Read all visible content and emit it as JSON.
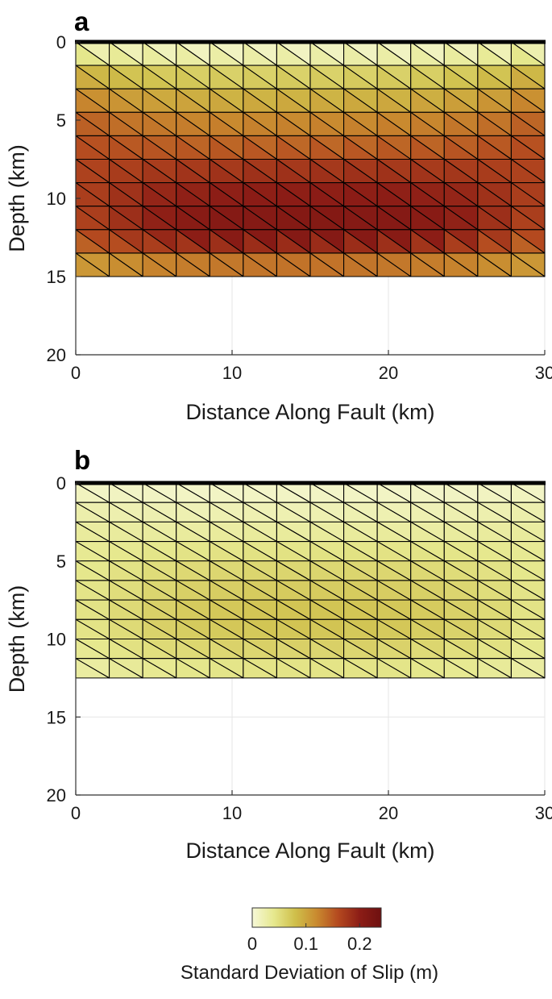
{
  "chart_data": [
    {
      "type": "heatmap",
      "panel_label": "a",
      "xlabel": "Distance Along Fault (km)",
      "ylabel": "Depth (km)",
      "xlim": [
        0,
        30
      ],
      "ylim": [
        20,
        0
      ],
      "xticks": [
        "0",
        "10",
        "20",
        "30"
      ],
      "yticks": [
        "0",
        "5",
        "10",
        "15",
        "20"
      ],
      "grid": true,
      "mesh": "triangulated fault patches, 14 along strike x 10 down dip (~2.14 km x 1.5 km), each split along one diagonal",
      "fault_bottom_depth": 15,
      "depth_bands": [
        0,
        1.5,
        3,
        4.5,
        6,
        7.5,
        9,
        10.5,
        12,
        13.5,
        15
      ],
      "values": [
        [
          0.022,
          0.018,
          0.015,
          0.013,
          0.012,
          0.012,
          0.012,
          0.012,
          0.012,
          0.012,
          0.013,
          0.015,
          0.018,
          0.022
        ],
        [
          0.085,
          0.075,
          0.068,
          0.064,
          0.062,
          0.061,
          0.061,
          0.061,
          0.061,
          0.062,
          0.064,
          0.068,
          0.075,
          0.085
        ],
        [
          0.115,
          0.104,
          0.096,
          0.092,
          0.089,
          0.088,
          0.088,
          0.088,
          0.088,
          0.089,
          0.092,
          0.096,
          0.104,
          0.115
        ],
        [
          0.142,
          0.132,
          0.126,
          0.122,
          0.12,
          0.119,
          0.119,
          0.119,
          0.119,
          0.12,
          0.122,
          0.126,
          0.132,
          0.142
        ],
        [
          0.155,
          0.15,
          0.146,
          0.143,
          0.142,
          0.141,
          0.141,
          0.141,
          0.141,
          0.142,
          0.143,
          0.146,
          0.15,
          0.155
        ],
        [
          0.165,
          0.168,
          0.171,
          0.173,
          0.174,
          0.175,
          0.175,
          0.175,
          0.175,
          0.174,
          0.173,
          0.171,
          0.168,
          0.165
        ],
        [
          0.17,
          0.18,
          0.19,
          0.194,
          0.197,
          0.198,
          0.198,
          0.198,
          0.198,
          0.197,
          0.194,
          0.19,
          0.18,
          0.17
        ],
        [
          0.17,
          0.184,
          0.198,
          0.205,
          0.209,
          0.21,
          0.211,
          0.211,
          0.21,
          0.209,
          0.205,
          0.198,
          0.184,
          0.17
        ],
        [
          0.16,
          0.175,
          0.19,
          0.2,
          0.205,
          0.208,
          0.209,
          0.209,
          0.208,
          0.205,
          0.2,
          0.19,
          0.175,
          0.16
        ],
        [
          0.11,
          0.117,
          0.124,
          0.128,
          0.131,
          0.133,
          0.134,
          0.134,
          0.133,
          0.131,
          0.128,
          0.124,
          0.117,
          0.11
        ]
      ]
    },
    {
      "type": "heatmap",
      "panel_label": "b",
      "xlabel": "Distance Along Fault (km)",
      "ylabel": "Depth (km)",
      "xlim": [
        0,
        30
      ],
      "ylim": [
        20,
        0
      ],
      "xticks": [
        "0",
        "10",
        "20",
        "30"
      ],
      "yticks": [
        "0",
        "5",
        "10",
        "15",
        "20"
      ],
      "grid": true,
      "mesh": "triangulated fault patches, 14 along strike x 10 down dip (~2.14 km x 1.25 km), each split along one diagonal",
      "fault_bottom_depth": 12.5,
      "depth_bands": [
        0,
        1.25,
        2.5,
        3.75,
        5,
        6.25,
        7.5,
        8.75,
        10,
        11.25,
        12.5
      ],
      "values": [
        [
          0.01,
          0.009,
          0.008,
          0.008,
          0.008,
          0.008,
          0.008,
          0.008,
          0.008,
          0.008,
          0.008,
          0.008,
          0.009,
          0.01
        ],
        [
          0.022,
          0.02,
          0.019,
          0.018,
          0.018,
          0.018,
          0.018,
          0.018,
          0.018,
          0.018,
          0.018,
          0.019,
          0.02,
          0.022
        ],
        [
          0.03,
          0.029,
          0.028,
          0.028,
          0.028,
          0.028,
          0.028,
          0.028,
          0.028,
          0.028,
          0.028,
          0.028,
          0.029,
          0.03
        ],
        [
          0.036,
          0.038,
          0.04,
          0.041,
          0.042,
          0.042,
          0.042,
          0.042,
          0.042,
          0.042,
          0.041,
          0.04,
          0.038,
          0.036
        ],
        [
          0.04,
          0.045,
          0.05,
          0.053,
          0.055,
          0.056,
          0.056,
          0.056,
          0.056,
          0.055,
          0.053,
          0.05,
          0.045,
          0.04
        ],
        [
          0.043,
          0.05,
          0.057,
          0.062,
          0.064,
          0.066,
          0.066,
          0.066,
          0.066,
          0.064,
          0.062,
          0.057,
          0.05,
          0.043
        ],
        [
          0.045,
          0.054,
          0.062,
          0.068,
          0.071,
          0.073,
          0.074,
          0.074,
          0.073,
          0.071,
          0.068,
          0.062,
          0.054,
          0.045
        ],
        [
          0.045,
          0.054,
          0.063,
          0.069,
          0.072,
          0.074,
          0.075,
          0.075,
          0.074,
          0.072,
          0.069,
          0.063,
          0.054,
          0.045
        ],
        [
          0.04,
          0.047,
          0.054,
          0.058,
          0.061,
          0.063,
          0.063,
          0.063,
          0.063,
          0.061,
          0.058,
          0.054,
          0.047,
          0.04
        ],
        [
          0.03,
          0.034,
          0.038,
          0.041,
          0.043,
          0.044,
          0.044,
          0.044,
          0.044,
          0.043,
          0.041,
          0.038,
          0.034,
          0.03
        ]
      ]
    }
  ],
  "colorbar": {
    "label": "Standard Deviation of Slip (m)",
    "range": [
      0,
      0.24
    ],
    "tick_values": [
      0,
      0.1,
      0.2
    ],
    "tick_labels": [
      "0",
      "0.1",
      "0.2"
    ],
    "colormap": [
      "#f6f8d8",
      "#e6e88e",
      "#cfbf4a",
      "#c98a2f",
      "#b4491f",
      "#8c1d16",
      "#6e1010"
    ]
  }
}
